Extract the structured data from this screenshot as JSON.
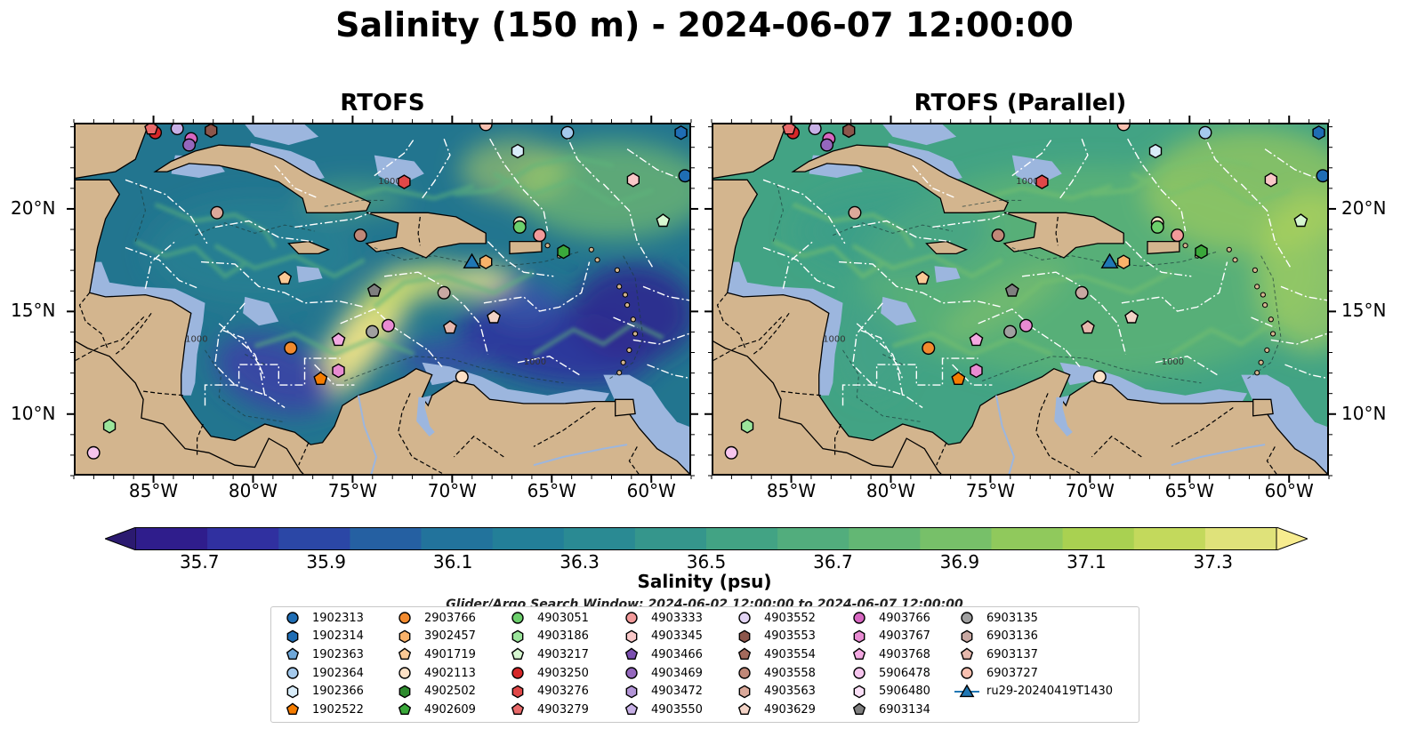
{
  "title": "Salinity (150 m) - 2024-06-07 12:00:00",
  "panels": [
    {
      "title": "RTOFS",
      "variant": "rtofs"
    },
    {
      "title": "RTOFS (Parallel)",
      "variant": "parallel"
    }
  ],
  "map": {
    "lon_range": [
      -89,
      -58
    ],
    "lat_range": [
      7,
      24.2
    ],
    "lon_ticks": [
      {
        "value": -85,
        "label": "85°W"
      },
      {
        "value": -80,
        "label": "80°W"
      },
      {
        "value": -75,
        "label": "75°W"
      },
      {
        "value": -70,
        "label": "70°W"
      },
      {
        "value": -65,
        "label": "65°W"
      },
      {
        "value": -60,
        "label": "60°W"
      }
    ],
    "lat_ticks": [
      {
        "value": 20,
        "label": "20°N"
      },
      {
        "value": 15,
        "label": "15°N"
      },
      {
        "value": 10,
        "label": "10°N"
      }
    ],
    "colors": {
      "land": "#d3b58e",
      "shallow": "#9cb6de",
      "boundary_lines": "#ffffff"
    },
    "contour_label": "1000"
  },
  "colorbar": {
    "title": "Salinity (psu)",
    "ticks": [
      "35.7",
      "35.9",
      "36.1",
      "36.3",
      "36.5",
      "36.7",
      "36.9",
      "37.1",
      "37.3"
    ],
    "range": [
      35.6,
      37.4
    ],
    "colors": [
      "#2b1a70",
      "#2f1d8c",
      "#3030a0",
      "#2b47a6",
      "#2560a2",
      "#22739c",
      "#237f98",
      "#2a8a93",
      "#35968c",
      "#42a384",
      "#52ad7d",
      "#63b774",
      "#77c069",
      "#90c95c",
      "#a9d151",
      "#c3d95c",
      "#dfe27a",
      "#f7ec8f"
    ]
  },
  "search_window": "Glider/Argo Search Window: 2024-06-02 12:00:00 to 2024-06-07 12:00:00",
  "legend": {
    "columns": [
      [
        {
          "label": "1902313",
          "shape": "circle",
          "color": "#1f6db4"
        },
        {
          "label": "1902314",
          "shape": "hexagon",
          "color": "#1f6db4"
        },
        {
          "label": "1902363",
          "shape": "pentagon",
          "color": "#6fa8d9"
        },
        {
          "label": "1902364",
          "shape": "circle",
          "color": "#a4c9ec"
        },
        {
          "label": "1902366",
          "shape": "hexagon",
          "color": "#d8ecf9"
        },
        {
          "label": "1902522",
          "shape": "pentagon",
          "color": "#f57c00"
        }
      ],
      [
        {
          "label": "2903766",
          "shape": "circle",
          "color": "#f28a2e"
        },
        {
          "label": "3902457",
          "shape": "hexagon",
          "color": "#f9b26a"
        },
        {
          "label": "4901719",
          "shape": "pentagon",
          "color": "#fbc995"
        },
        {
          "label": "4902113",
          "shape": "circle",
          "color": "#fde1c6"
        },
        {
          "label": "4902502",
          "shape": "hexagon",
          "color": "#2e8b2e"
        },
        {
          "label": "4902609",
          "shape": "pentagon",
          "color": "#3aa83a"
        }
      ],
      [
        {
          "label": "4903051",
          "shape": "circle",
          "color": "#6ccf6c"
        },
        {
          "label": "4903186",
          "shape": "hexagon",
          "color": "#9be59b"
        },
        {
          "label": "4903217",
          "shape": "pentagon",
          "color": "#d6f7d0"
        },
        {
          "label": "4903250",
          "shape": "circle",
          "color": "#d62728"
        },
        {
          "label": "4903276",
          "shape": "hexagon",
          "color": "#e04848"
        },
        {
          "label": "4903279",
          "shape": "pentagon",
          "color": "#e96a6a"
        }
      ],
      [
        {
          "label": "4903333",
          "shape": "circle",
          "color": "#f29a9a"
        },
        {
          "label": "4903345",
          "shape": "hexagon",
          "color": "#f9c8c8"
        },
        {
          "label": "4903466",
          "shape": "pentagon",
          "color": "#7b4fb0"
        },
        {
          "label": "4903469",
          "shape": "circle",
          "color": "#9467bd"
        },
        {
          "label": "4903472",
          "shape": "hexagon",
          "color": "#b294d6"
        },
        {
          "label": "4903550",
          "shape": "pentagon",
          "color": "#c7b0e6"
        }
      ],
      [
        {
          "label": "4903552",
          "shape": "circle",
          "color": "#e2d4f4"
        },
        {
          "label": "4903553",
          "shape": "hexagon",
          "color": "#8c564b"
        },
        {
          "label": "4903554",
          "shape": "pentagon",
          "color": "#a46a5c"
        },
        {
          "label": "4903558",
          "shape": "circle",
          "color": "#c08878"
        },
        {
          "label": "4903563",
          "shape": "hexagon",
          "color": "#dba99a"
        },
        {
          "label": "4903629",
          "shape": "pentagon",
          "color": "#f3d3c6"
        }
      ],
      [
        {
          "label": "4903766",
          "shape": "circle",
          "color": "#d767c1"
        },
        {
          "label": "4903767",
          "shape": "hexagon",
          "color": "#e88bd2"
        },
        {
          "label": "4903768",
          "shape": "pentagon",
          "color": "#f3a9e2"
        },
        {
          "label": "5906478",
          "shape": "circle",
          "color": "#f6c5ee"
        },
        {
          "label": "5906480",
          "shape": "hexagon",
          "color": "#fbe0f7"
        },
        {
          "label": "6903134",
          "shape": "pentagon",
          "color": "#7f7f7f"
        }
      ],
      [
        {
          "label": "6903135",
          "shape": "circle",
          "color": "#a0a0a0"
        },
        {
          "label": "6903136",
          "shape": "hexagon",
          "color": "#c8a8a2"
        },
        {
          "label": "6903137",
          "shape": "pentagon",
          "color": "#e6b8ad"
        },
        {
          "label": "6903727",
          "shape": "circle",
          "color": "#f9c0b0"
        },
        {
          "label": "ru29-20240419T1430",
          "shape": "triangle",
          "color": "#1f77b4"
        }
      ]
    ]
  },
  "markers": [
    {
      "lon": -85,
      "lat": 23.8,
      "shape": "circle",
      "color": "#d62728"
    },
    {
      "lon": -85.2,
      "lat": 24.0,
      "shape": "pentagon",
      "color": "#e96a6a"
    },
    {
      "lon": -83.9,
      "lat": 24.0,
      "shape": "circle",
      "color": "#c7b0e6"
    },
    {
      "lon": -82.2,
      "lat": 23.9,
      "shape": "hexagon",
      "color": "#8c564b"
    },
    {
      "lon": -83.2,
      "lat": 23.5,
      "shape": "circle",
      "color": "#d767c1"
    },
    {
      "lon": -83.3,
      "lat": 23.2,
      "shape": "circle",
      "color": "#9467bd"
    },
    {
      "lon": -72.5,
      "lat": 21.4,
      "shape": "hexagon",
      "color": "#e04848"
    },
    {
      "lon": -81.9,
      "lat": 19.9,
      "shape": "circle",
      "color": "#dba99a"
    },
    {
      "lon": -68.4,
      "lat": 24.2,
      "shape": "circle",
      "color": "#f9c0b0"
    },
    {
      "lon": -66.8,
      "lat": 22.9,
      "shape": "hexagon",
      "color": "#d8ecf9"
    },
    {
      "lon": -64.3,
      "lat": 23.8,
      "shape": "circle",
      "color": "#a4c9ec"
    },
    {
      "lon": -58.6,
      "lat": 23.8,
      "shape": "hexagon",
      "color": "#1f6db4"
    },
    {
      "lon": -58.4,
      "lat": 21.7,
      "shape": "circle",
      "color": "#1f6db4"
    },
    {
      "lon": -61,
      "lat": 21.5,
      "shape": "hexagon",
      "color": "#f9c8c8"
    },
    {
      "lon": -59.5,
      "lat": 19.5,
      "shape": "pentagon",
      "color": "#d6f7d0"
    },
    {
      "lon": -66.7,
      "lat": 19.4,
      "shape": "circle",
      "color": "#fde1c6"
    },
    {
      "lon": -66.7,
      "lat": 19.2,
      "shape": "circle",
      "color": "#6ccf6c"
    },
    {
      "lon": -65.7,
      "lat": 18.8,
      "shape": "circle",
      "color": "#f29a9a"
    },
    {
      "lon": -64.5,
      "lat": 18.0,
      "shape": "hexagon",
      "color": "#3aa83a"
    },
    {
      "lon": -74.7,
      "lat": 18.8,
      "shape": "circle",
      "color": "#c08878"
    },
    {
      "lon": -68.4,
      "lat": 17.5,
      "shape": "hexagon",
      "color": "#f9b26a"
    },
    {
      "lon": -78.5,
      "lat": 16.7,
      "shape": "pentagon",
      "color": "#fbc995"
    },
    {
      "lon": -74,
      "lat": 16.1,
      "shape": "pentagon",
      "color": "#7f7f7f"
    },
    {
      "lon": -70.5,
      "lat": 16.0,
      "shape": "circle",
      "color": "#c8a8a2"
    },
    {
      "lon": -68,
      "lat": 14.8,
      "shape": "pentagon",
      "color": "#f3d3c6"
    },
    {
      "lon": -73.3,
      "lat": 14.4,
      "shape": "circle",
      "color": "#e88bd2"
    },
    {
      "lon": -74.1,
      "lat": 14.1,
      "shape": "circle",
      "color": "#a0a0a0"
    },
    {
      "lon": -70.2,
      "lat": 14.3,
      "shape": "pentagon",
      "color": "#e6b8ad"
    },
    {
      "lon": -75.8,
      "lat": 13.7,
      "shape": "pentagon",
      "color": "#f3a9e2"
    },
    {
      "lon": -78.2,
      "lat": 13.3,
      "shape": "circle",
      "color": "#f28a2e"
    },
    {
      "lon": -75.8,
      "lat": 12.2,
      "shape": "hexagon",
      "color": "#e88bd2"
    },
    {
      "lon": -76.7,
      "lat": 11.8,
      "shape": "pentagon",
      "color": "#f57c00"
    },
    {
      "lon": -69.6,
      "lat": 11.9,
      "shape": "circle",
      "color": "#fde1c6"
    },
    {
      "lon": -87.3,
      "lat": 9.5,
      "shape": "hexagon",
      "color": "#9be59b"
    },
    {
      "lon": -88.1,
      "lat": 8.2,
      "shape": "circle",
      "color": "#f6c5ee"
    },
    {
      "lon": -69.1,
      "lat": 17.5,
      "shape": "triangle",
      "color": "#1f77b4"
    }
  ]
}
